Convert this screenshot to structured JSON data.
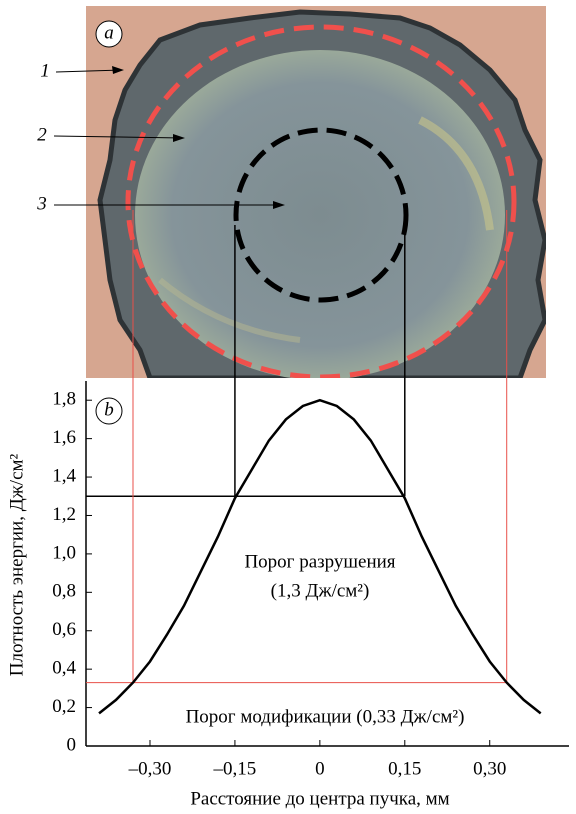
{
  "image": {
    "label": "a",
    "regions": [
      "1",
      "2",
      "3"
    ]
  },
  "chart_data": {
    "type": "line",
    "panel_label": "b",
    "x_label": "Расстояние до центра пучка, мм",
    "y_label": "Плотность энергии, Дж/см²",
    "x": [
      -0.39,
      -0.36,
      -0.33,
      -0.3,
      -0.27,
      -0.24,
      -0.21,
      -0.18,
      -0.15,
      -0.12,
      -0.09,
      -0.06,
      -0.03,
      0,
      0.03,
      0.06,
      0.09,
      0.12,
      0.15,
      0.18,
      0.21,
      0.24,
      0.27,
      0.3,
      0.33,
      0.36,
      0.39
    ],
    "values": [
      0.17,
      0.24,
      0.33,
      0.44,
      0.58,
      0.73,
      0.91,
      1.09,
      1.29,
      1.44,
      1.59,
      1.7,
      1.77,
      1.8,
      1.77,
      1.7,
      1.59,
      1.44,
      1.29,
      1.09,
      0.91,
      0.73,
      0.58,
      0.44,
      0.33,
      0.24,
      0.17
    ],
    "color": "#000000",
    "xlim": [
      -0.413,
      0.44
    ],
    "ylim": [
      0,
      1.9
    ],
    "xticks": [
      {
        "value": -0.3,
        "label": "–0,30"
      },
      {
        "value": -0.15,
        "label": "–0,15"
      },
      0,
      {
        "value": 0.15,
        "label": "0,15"
      },
      {
        "value": 0.3,
        "label": "0,30"
      }
    ],
    "yticks": [
      0,
      {
        "value": 0.2,
        "label": "0,2"
      },
      {
        "value": 0.4,
        "label": "0,4"
      },
      {
        "value": 0.6,
        "label": "0,6"
      },
      {
        "value": 0.8,
        "label": "0,8"
      },
      {
        "value": 1.0,
        "label": "1,0"
      },
      {
        "value": 1.2,
        "label": "1,2"
      },
      {
        "value": 1.4,
        "label": "1,4"
      },
      {
        "value": 1.6,
        "label": "1,6"
      },
      {
        "value": 1.8,
        "label": "1,8"
      }
    ],
    "thresholds": [
      {
        "value": 1.3,
        "x": [
          -0.15,
          0.15
        ],
        "color": "#000000"
      },
      {
        "value": 0.33,
        "x": [
          -0.33,
          0.33
        ],
        "color": "#e8504a"
      }
    ],
    "annotations": [
      "Порог разрушения",
      "(1,3 Дж/см²)",
      "Порог модификации (0,33 Дж/см²)"
    ]
  }
}
